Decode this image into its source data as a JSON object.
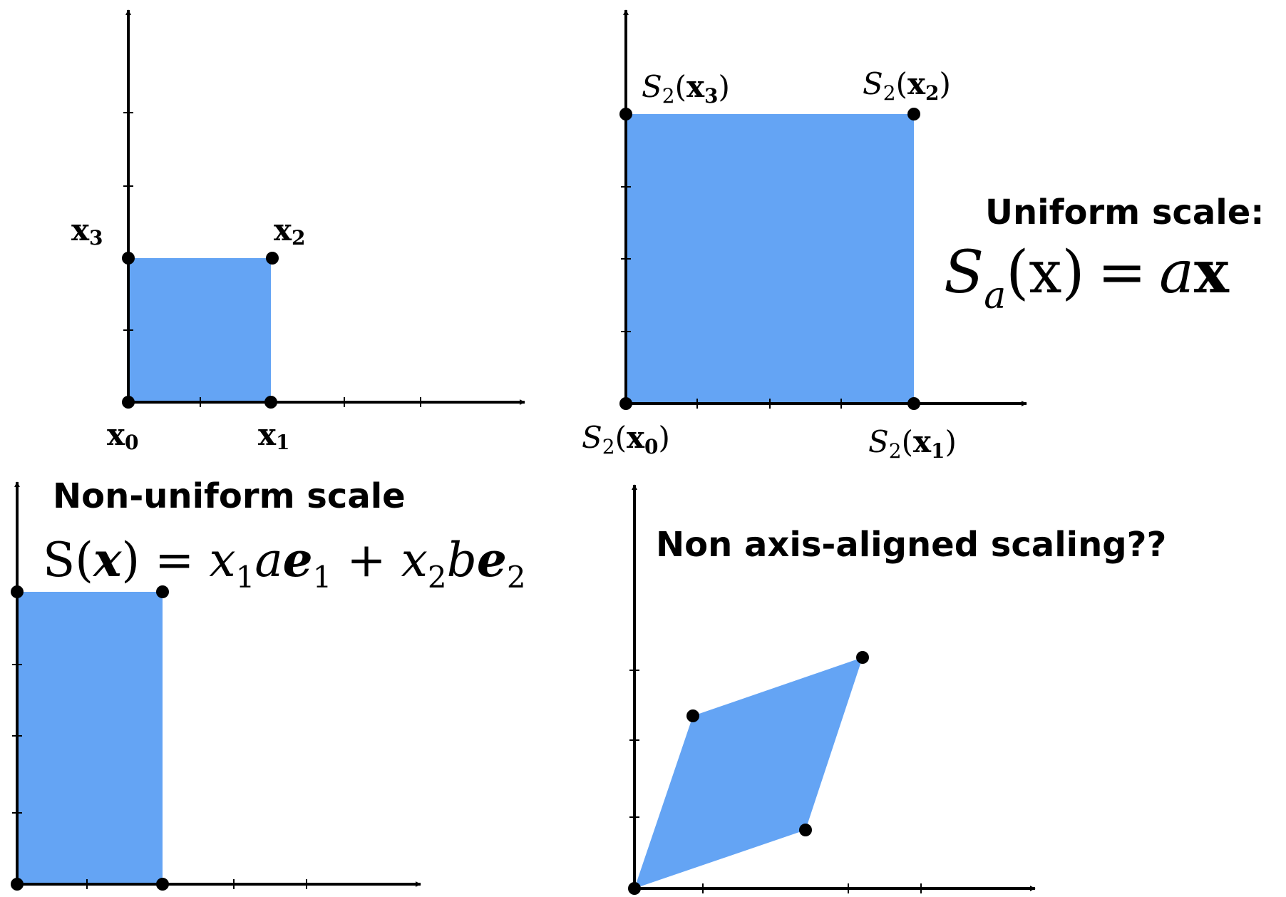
{
  "colors": {
    "fill": "#64a4f4",
    "axis": "#000000",
    "point": "#000000"
  },
  "panels": {
    "original": {
      "labels": {
        "x0": "x0",
        "x1": "x1",
        "x2": "x2",
        "x3": "x3"
      }
    },
    "uniform": {
      "heading": "Uniform scale:",
      "formula": {
        "lhs_sym": "S",
        "lhs_sub": "a",
        "lhs_arg": "(x)",
        "eq": "=",
        "rhs_coef": "a",
        "rhs_var": "x"
      },
      "labels": {
        "s0": "S2(x0)",
        "s1": "S2(x1)",
        "s2": "S2(x2)",
        "s3": "S2(x3)"
      }
    },
    "nonuniform": {
      "heading": "Non-uniform scale",
      "formula": "S(x) = x1ae1 + x2be2"
    },
    "nonaxis": {
      "heading": "Non axis-aligned scaling??"
    }
  }
}
